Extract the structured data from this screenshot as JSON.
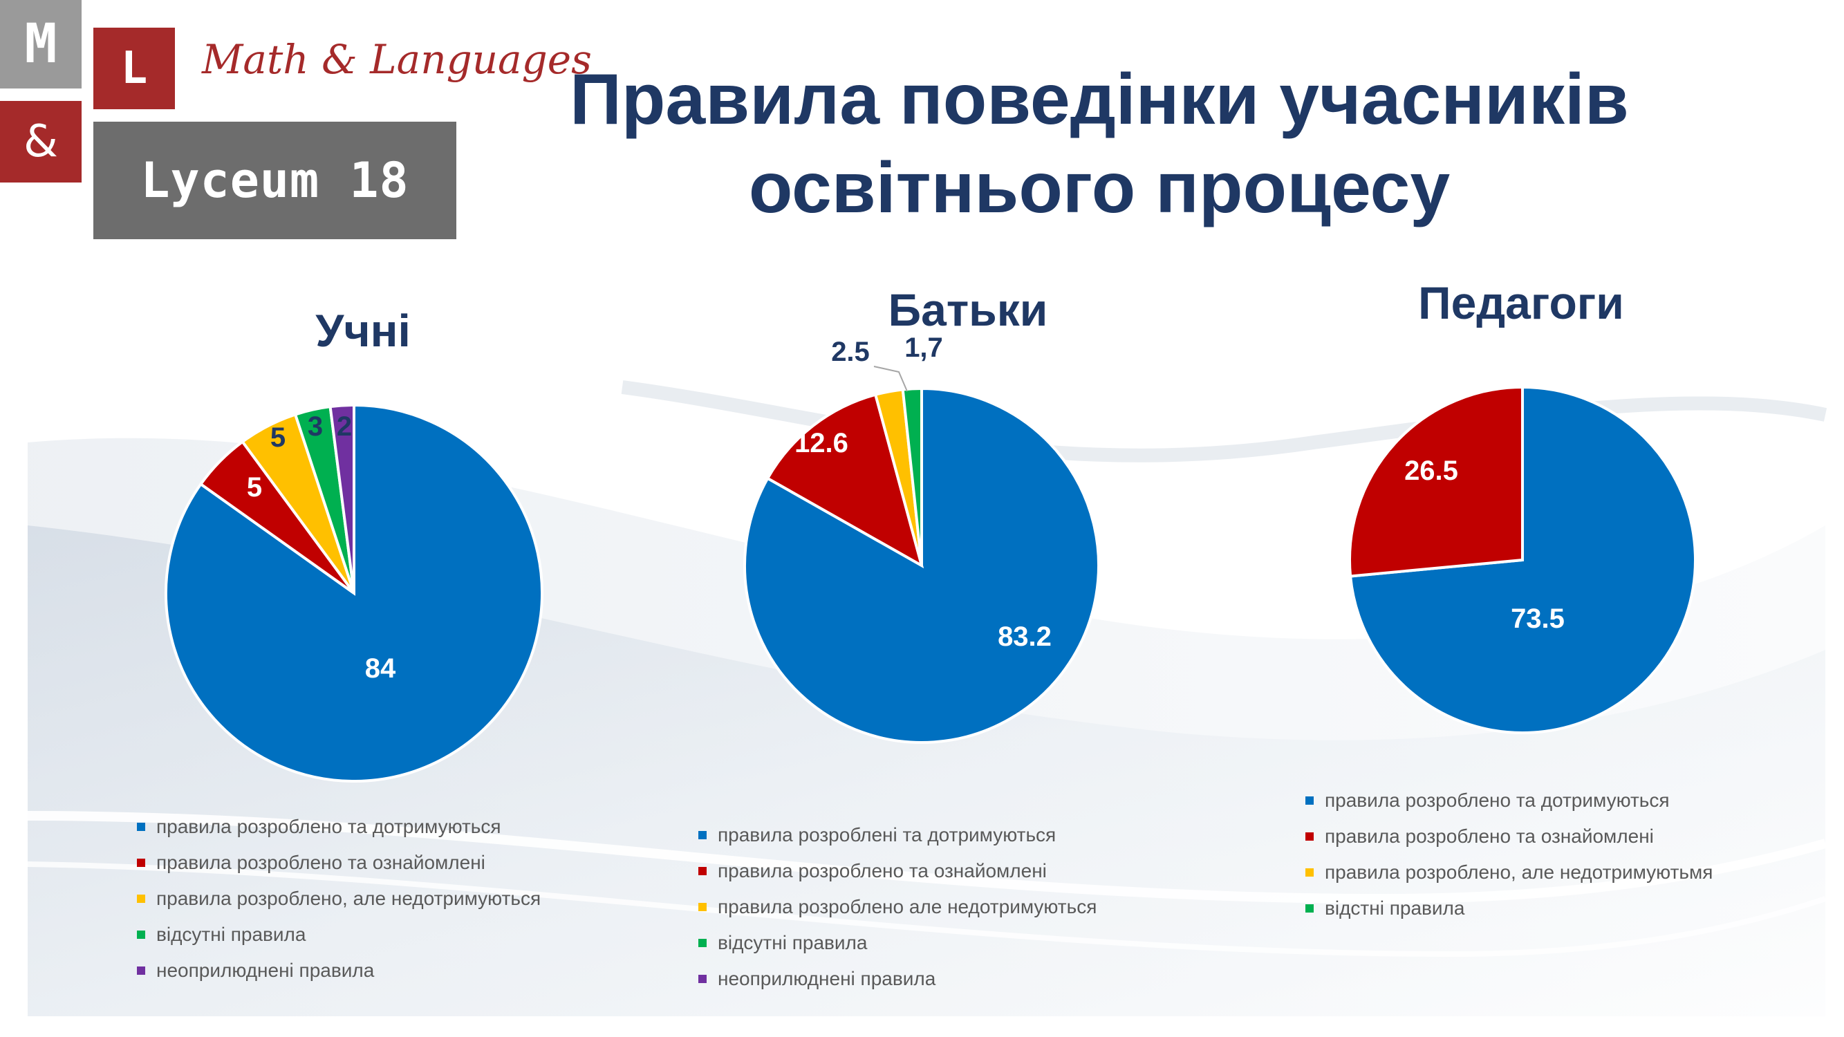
{
  "logo": {
    "letter_m": "M",
    "letter_l": "L",
    "ampersand": "&",
    "script_text": "Math & Languages",
    "lyceum": "Lyceum 18"
  },
  "title": "Правила поведінки учасників освітнього процесу",
  "colors": {
    "blue": "#0070c0",
    "red": "#c00000",
    "yellow": "#ffc000",
    "green": "#00b050",
    "purple": "#7030a0",
    "title_navy": "#1f3864"
  },
  "chart_data": [
    {
      "type": "pie",
      "title": "Учні",
      "categories": [
        "правила розроблено та дотримуються",
        "правила розроблено та ознайомлені",
        "правила розроблено, але недотримуються",
        "відсутні правила",
        "неоприлюднені правила"
      ],
      "values": [
        84,
        5,
        5,
        3,
        2
      ],
      "labels": [
        "84",
        "5",
        "5",
        "3",
        "2"
      ],
      "colors": [
        "#0070c0",
        "#c00000",
        "#ffc000",
        "#00b050",
        "#7030a0"
      ],
      "legend_position": "bottom"
    },
    {
      "type": "pie",
      "title": "Батьки",
      "categories": [
        "правила розроблені та дотримуються",
        "правила розроблено та ознайомлені",
        "правила розроблено але недотримуються",
        "відсутні правила",
        "неоприлюднені правила"
      ],
      "values": [
        83.2,
        12.6,
        2.5,
        1.7
      ],
      "labels": [
        "83.2",
        "12.6",
        "2.5",
        "1,7"
      ],
      "colors": [
        "#0070c0",
        "#c00000",
        "#ffc000",
        "#00b050",
        "#7030a0"
      ],
      "legend_position": "bottom"
    },
    {
      "type": "pie",
      "title": "Педагоги",
      "categories": [
        "правила розроблено та дотримуються",
        "правила розроблено та ознайомлені",
        "правила розроблено, але недотримуютьмя",
        "відстні правила"
      ],
      "values": [
        73.5,
        26.5
      ],
      "labels": [
        "73.5",
        "26.5"
      ],
      "colors": [
        "#0070c0",
        "#c00000",
        "#ffc000",
        "#00b050"
      ],
      "legend_position": "bottom"
    }
  ]
}
